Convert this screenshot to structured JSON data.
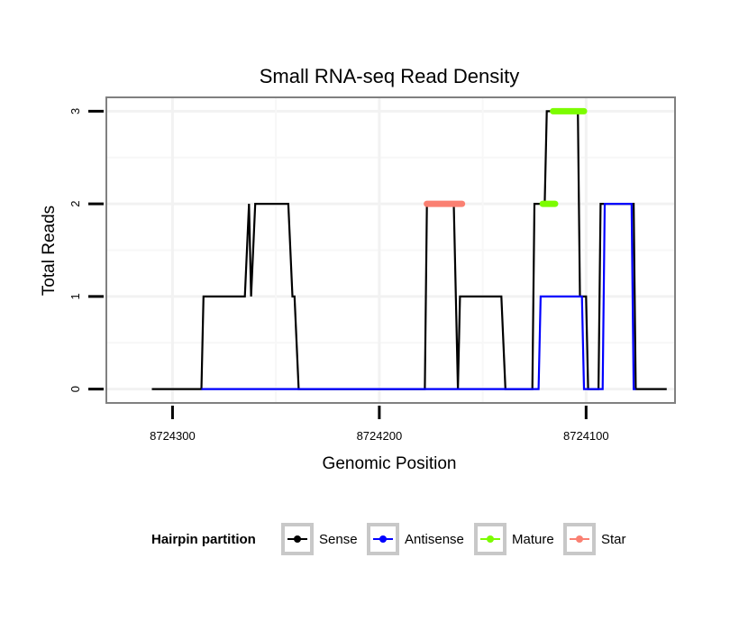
{
  "chart_data": {
    "type": "line",
    "title": "Small RNA-seq Read Density",
    "xlabel": "Genomic Position",
    "ylabel": "Total Reads",
    "x_reversed": true,
    "xlim": [
      8724332,
      8724057
    ],
    "ylim": [
      -0.15,
      3.15
    ],
    "x_ticks": [
      8724300,
      8724200,
      8724100
    ],
    "x_tick_labels": [
      "8724300",
      "8724200",
      "8724100"
    ],
    "y_ticks": [
      0,
      1,
      2,
      3
    ],
    "y_tick_labels": [
      "0",
      "1",
      "2",
      "3"
    ],
    "grid": true,
    "legend": {
      "title": "Hairpin partition",
      "position": "bottom",
      "entries": [
        {
          "key": "sense",
          "label": "Sense",
          "color": "#000000"
        },
        {
          "key": "antisense",
          "label": "Antisense",
          "color": "#0000ff"
        },
        {
          "key": "mature",
          "label": "Mature",
          "color": "#7cfc00"
        },
        {
          "key": "star",
          "label": "Star",
          "color": "#fa8072"
        }
      ]
    },
    "series": [
      {
        "name": "Sense",
        "kind": "line",
        "color": "#000000",
        "points": [
          [
            8724310,
            0
          ],
          [
            8724286,
            0
          ],
          [
            8724285,
            1
          ],
          [
            8724265,
            1
          ],
          [
            8724263,
            2
          ],
          [
            8724262,
            1
          ],
          [
            8724260,
            2
          ],
          [
            8724244,
            2
          ],
          [
            8724242,
            1
          ],
          [
            8724241,
            1
          ],
          [
            8724239,
            0
          ],
          [
            8724178,
            0
          ],
          [
            8724177,
            2
          ],
          [
            8724164,
            2
          ],
          [
            8724162,
            0
          ],
          [
            8724161,
            1
          ],
          [
            8724141,
            1
          ],
          [
            8724139,
            0
          ],
          [
            8724126,
            0
          ],
          [
            8724125,
            2
          ],
          [
            8724120,
            2
          ],
          [
            8724119,
            3
          ],
          [
            8724104,
            3
          ],
          [
            8724103,
            1
          ],
          [
            8724100,
            1
          ],
          [
            8724099,
            0
          ],
          [
            8724094,
            0
          ],
          [
            8724093,
            2
          ],
          [
            8724077,
            2
          ],
          [
            8724076,
            0
          ],
          [
            8724061,
            0
          ]
        ]
      },
      {
        "name": "Antisense",
        "kind": "line",
        "color": "#0000ff",
        "points": [
          [
            8724286,
            0
          ],
          [
            8724140,
            0
          ],
          [
            8724123,
            0
          ],
          [
            8724122,
            1
          ],
          [
            8724102,
            1
          ],
          [
            8724101,
            0
          ],
          [
            8724092,
            0
          ],
          [
            8724091,
            2
          ],
          [
            8724078,
            2
          ],
          [
            8724077,
            0
          ],
          [
            8724076,
            0
          ]
        ]
      },
      {
        "name": "Mature",
        "kind": "segment",
        "color": "#7cfc00",
        "points": [
          [
            8724121,
            2
          ],
          [
            8724115,
            2
          ],
          [
            8724116,
            3
          ],
          [
            8724101,
            3
          ]
        ]
      },
      {
        "name": "Star",
        "kind": "segment",
        "color": "#fa8072",
        "points": [
          [
            8724177,
            2
          ],
          [
            8724160,
            2
          ]
        ]
      }
    ]
  }
}
